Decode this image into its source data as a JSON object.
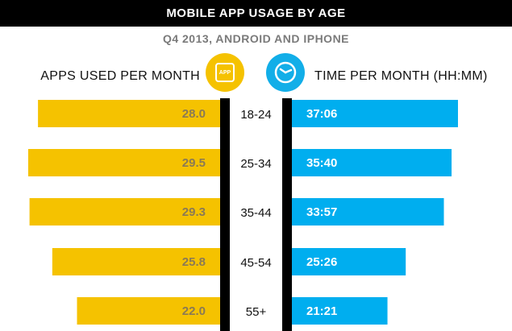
{
  "header": {
    "title": "MOBILE APP USAGE BY AGE",
    "subtitle": "Q4 2013, ANDROID AND IPHONE"
  },
  "left_label": "APPS USED PER MONTH",
  "right_label": "TIME PER MONTH (HH:MM)",
  "icons": {
    "app_icon": "app-icon",
    "app_icon_text": "APP",
    "clock_icon": "clock-icon"
  },
  "colors": {
    "apps_bar": "#f5c200",
    "time_bar": "#00aeef",
    "divider": "#000000",
    "apps_value_text": "#8a7a55",
    "time_value_text": "#ffffff"
  },
  "chart_data": {
    "type": "bar",
    "orientation": "horizontal-back-to-back",
    "title": "MOBILE APP USAGE BY AGE",
    "subtitle": "Q4 2013, ANDROID AND IPHONE",
    "categories": [
      "18-24",
      "25-34",
      "35-44",
      "45-54",
      "55+"
    ],
    "series": [
      {
        "name": "APPS USED PER MONTH",
        "values": [
          28.0,
          29.5,
          29.3,
          25.8,
          22.0
        ],
        "labels": [
          "28.0",
          "29.5",
          "29.3",
          "25.8",
          "22.0"
        ]
      },
      {
        "name": "TIME PER MONTH (HH:MM)",
        "values": [
          37.1,
          35.67,
          33.95,
          25.43,
          21.35
        ],
        "labels": [
          "37:06",
          "35:40",
          "33:57",
          "25:26",
          "21:21"
        ]
      }
    ],
    "grid": false,
    "legend": "none"
  }
}
